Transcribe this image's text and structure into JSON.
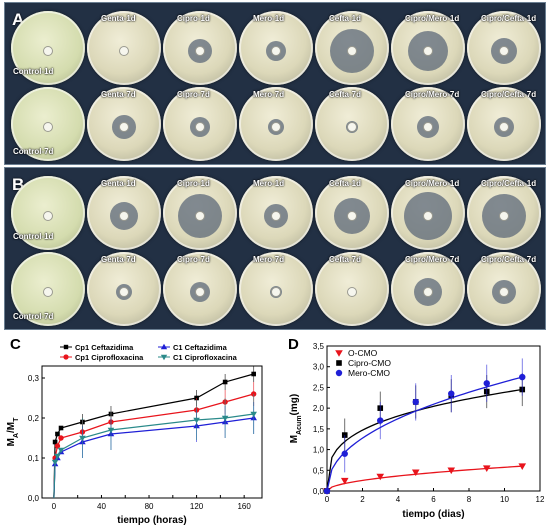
{
  "panels": {
    "A": {
      "letter": "A",
      "row1": [
        "Control-1d",
        "Genta-1d",
        "Cipro-1d",
        "Mero-1d",
        "Cefta-1d",
        "Cipro/Mero-1d",
        "Cipro/Cefta-1d"
      ],
      "row2": [
        "Control-7d",
        "Genta-7d",
        "Cipro-7d",
        "Mero-7d",
        "Cefta-7d",
        "Cipro/Mero-7d",
        "Cipro/Cefta-7d"
      ]
    },
    "B": {
      "letter": "B",
      "row1": [
        "Control-1d",
        "Genta-1d",
        "Cipro-1d",
        "Mero-1d",
        "Cefta-1d",
        "Cipro/Mero-1d",
        "Cipro/Cefta-1d"
      ],
      "row2": [
        "Control-7d",
        "Genta-7d",
        "Cipro-7d",
        "Mero-7d",
        "Cefta-7d",
        "Cipro/Mero-7d",
        "Cipro/Cefta-7d"
      ]
    }
  },
  "colors": {
    "black": "#000000",
    "red": "#e8141c",
    "blue": "#1f1fd6",
    "teal": "#2a8a8a"
  },
  "chart_data": [
    {
      "letter": "C",
      "type": "line",
      "xlabel": "tiempo (horas)",
      "ylabel": "MA/MT",
      "ylabel_main": "M",
      "ylabel_sub1": "A",
      "ylabel_mid": "/M",
      "ylabel_sub2": "T",
      "xlim": [
        -10,
        175
      ],
      "ylim": [
        0.0,
        0.33
      ],
      "xticks": [
        0,
        20,
        40,
        60,
        80,
        100,
        120,
        140,
        160
      ],
      "yticks": [
        0.0,
        0.1,
        0.2,
        0.3
      ],
      "ytick_labels": [
        "0,0",
        "0,1",
        "0,2",
        "0,3"
      ],
      "legend_position": "top",
      "series": [
        {
          "name": "Cp1 Ceftazidima",
          "color": "#000000",
          "marker": "square",
          "x": [
            1,
            3,
            6,
            24,
            48,
            120,
            144,
            168
          ],
          "y": [
            0.14,
            0.16,
            0.175,
            0.19,
            0.21,
            0.25,
            0.29,
            0.31
          ]
        },
        {
          "name": "Cp1 Ciprofloxacina",
          "color": "#e8141c",
          "marker": "circle",
          "x": [
            1,
            3,
            6,
            24,
            48,
            120,
            144,
            168
          ],
          "y": [
            0.1,
            0.13,
            0.15,
            0.165,
            0.19,
            0.22,
            0.24,
            0.26
          ]
        },
        {
          "name": "C1 Ceftazidima",
          "color": "#1f1fd6",
          "marker": "triangle",
          "x": [
            1,
            3,
            6,
            24,
            48,
            120,
            144,
            168
          ],
          "y": [
            0.085,
            0.1,
            0.115,
            0.14,
            0.16,
            0.18,
            0.19,
            0.2
          ]
        },
        {
          "name": "C1 Ciprofloxacina",
          "color": "#2a8a8a",
          "marker": "triangle-down",
          "x": [
            1,
            3,
            6,
            24,
            48,
            120,
            144,
            168
          ],
          "y": [
            0.09,
            0.105,
            0.12,
            0.15,
            0.17,
            0.195,
            0.2,
            0.21
          ]
        }
      ]
    },
    {
      "letter": "D",
      "type": "scatter",
      "xlabel": "tiempo (dias)",
      "ylabel": "MAcum(mg)",
      "ylabel_main": "M",
      "ylabel_sub": "Acum",
      "ylabel_tail": "(mg)",
      "xlim": [
        0,
        12
      ],
      "ylim": [
        0.0,
        3.5
      ],
      "xticks": [
        0,
        2,
        4,
        6,
        8,
        10,
        12
      ],
      "yticks": [
        0.0,
        0.5,
        1.0,
        1.5,
        2.0,
        2.5,
        3.0,
        3.5
      ],
      "ytick_labels": [
        "0,0",
        "0,5",
        "1,0",
        "1,5",
        "2,0",
        "2,5",
        "3,0",
        "3,5"
      ],
      "legend_position": "top-left",
      "series": [
        {
          "name": "O-CMO",
          "color": "#e8141c",
          "marker": "triangle-down",
          "x": [
            0,
            1,
            3,
            5,
            7,
            9,
            11
          ],
          "y": [
            0.0,
            0.25,
            0.35,
            0.45,
            0.5,
            0.55,
            0.6
          ]
        },
        {
          "name": "Cipro-CMO",
          "color": "#000000",
          "marker": "square",
          "x": [
            0,
            1,
            3,
            5,
            7,
            9,
            11
          ],
          "y": [
            0.0,
            1.35,
            2.0,
            2.15,
            2.3,
            2.4,
            2.45
          ]
        },
        {
          "name": "Mero-CMO",
          "color": "#1f1fd6",
          "marker": "circle",
          "x": [
            0,
            1,
            3,
            5,
            7,
            9,
            11
          ],
          "y": [
            0.0,
            0.9,
            1.7,
            2.15,
            2.35,
            2.6,
            2.75
          ]
        }
      ]
    }
  ]
}
